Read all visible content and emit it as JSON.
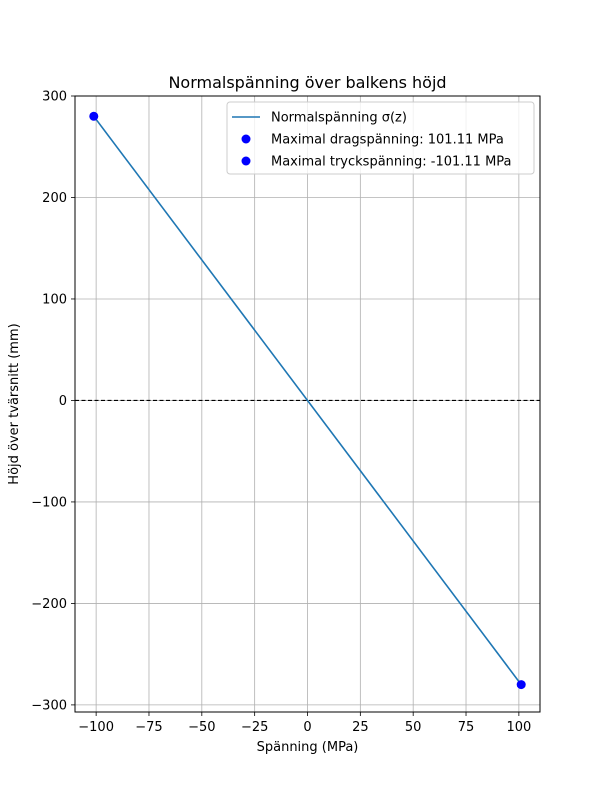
{
  "chart_data": {
    "type": "line",
    "title": "Normalspänning över balkens höjd",
    "xlabel": "Spänning (MPa)",
    "ylabel": "Höjd över tvärsnitt (mm)",
    "xlim": [
      -110,
      110
    ],
    "ylim": [
      -307,
      300
    ],
    "xticks": [
      -100,
      -75,
      -50,
      -25,
      0,
      25,
      50,
      75,
      100
    ],
    "xtick_labels": [
      "−100",
      "−75",
      "−50",
      "−25",
      "0",
      "25",
      "50",
      "75",
      "100"
    ],
    "yticks": [
      -300,
      -200,
      -100,
      0,
      100,
      200,
      300
    ],
    "ytick_labels": [
      "−300",
      "−200",
      "−100",
      "0",
      "100",
      "200",
      "300"
    ],
    "grid": true,
    "legend_position": "top-right",
    "series": [
      {
        "name": "Normalspänning σ(z)",
        "kind": "line",
        "color": "#1f77b4",
        "x": [
          -101.11,
          101.11
        ],
        "y": [
          280,
          -280
        ]
      },
      {
        "name": "Maximal dragspänning: 101.11 MPa",
        "kind": "scatter",
        "color": "#0000ff",
        "x": [
          -101.11
        ],
        "y": [
          280
        ]
      },
      {
        "name": "Maximal tryckspänning: -101.11 MPa",
        "kind": "scatter",
        "color": "#0000ff",
        "x": [
          101.11
        ],
        "y": [
          -280
        ]
      }
    ],
    "reference_lines": [
      {
        "orientation": "horizontal",
        "y": 0,
        "style": "dashed",
        "color": "#000000"
      }
    ]
  }
}
